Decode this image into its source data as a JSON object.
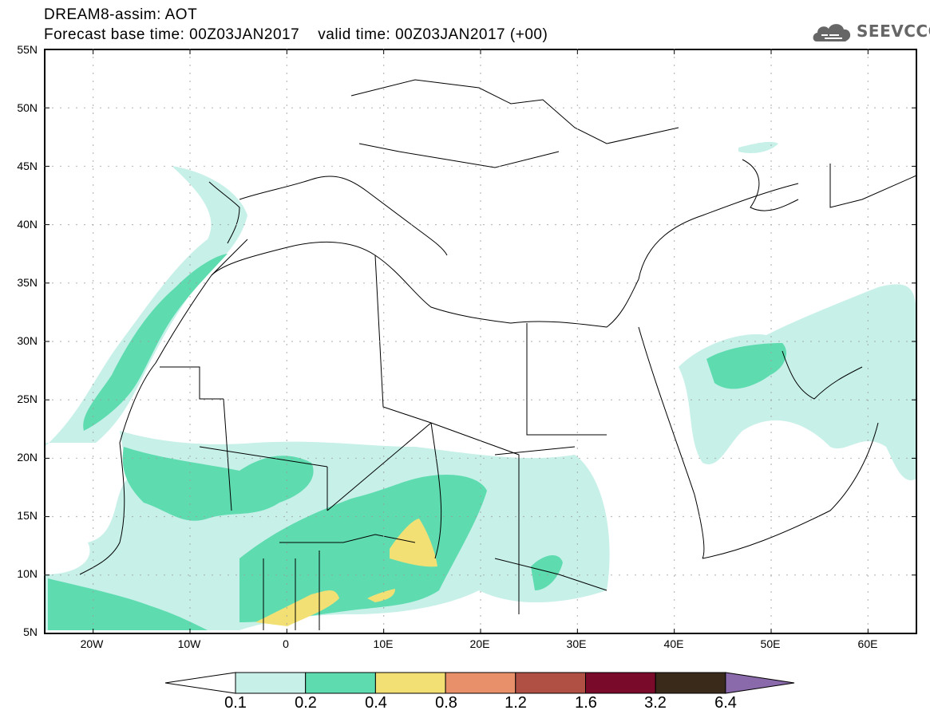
{
  "title": {
    "line1": "DREAM8-assim: AOT",
    "line2": "Forecast base time: 00Z03JAN2017    valid time: 00Z03JAN2017 (+00)"
  },
  "logo": {
    "text": "SEEVCCC",
    "icon": "cloud-icon"
  },
  "map": {
    "lat_labels": [
      "55N",
      "50N",
      "45N",
      "40N",
      "35N",
      "30N",
      "25N",
      "20N",
      "15N",
      "10N",
      "5N"
    ],
    "lon_labels": [
      "20W",
      "10W",
      "0",
      "10E",
      "20E",
      "30E",
      "40E",
      "50E",
      "60E"
    ],
    "variable": "AOT",
    "lat_range": [
      5,
      55
    ],
    "lon_range": [
      -25,
      65
    ]
  },
  "colorbar": {
    "labels": [
      "0.1",
      "0.2",
      "0.4",
      "0.8",
      "1.2",
      "1.6",
      "3.2",
      "6.4"
    ],
    "colors": [
      "#ffffff",
      "#c6f0e8",
      "#5edcb0",
      "#f2e075",
      "#e8906a",
      "#b05044",
      "#7a0a2a",
      "#3a2a1a",
      "#8a6aaa"
    ]
  }
}
